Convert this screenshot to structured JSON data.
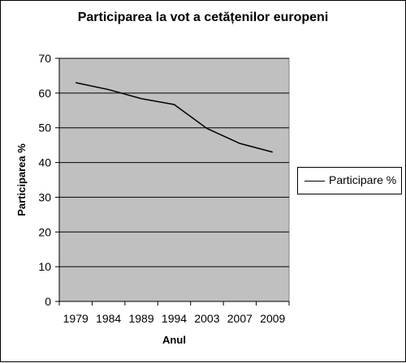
{
  "chart_data": {
    "type": "line",
    "title": "Participarea la vot a cetățenilor europeni",
    "xlabel": "Anul",
    "ylabel": "Participarea %",
    "categories": [
      "1979",
      "1984",
      "1989",
      "1994",
      "2003",
      "2007",
      "2009"
    ],
    "series": [
      {
        "name": "Participare %",
        "values": [
          63,
          61,
          58.4,
          56.7,
          49.8,
          45.5,
          43
        ]
      }
    ],
    "ylim": [
      0,
      70
    ],
    "yticks": [
      "0",
      "10",
      "20",
      "30",
      "40",
      "50",
      "60",
      "70"
    ],
    "grid": true,
    "legend_position": "right",
    "colors": {
      "plot_background": "#c0c0c0",
      "line": "#000000",
      "grid": "#000000"
    }
  }
}
